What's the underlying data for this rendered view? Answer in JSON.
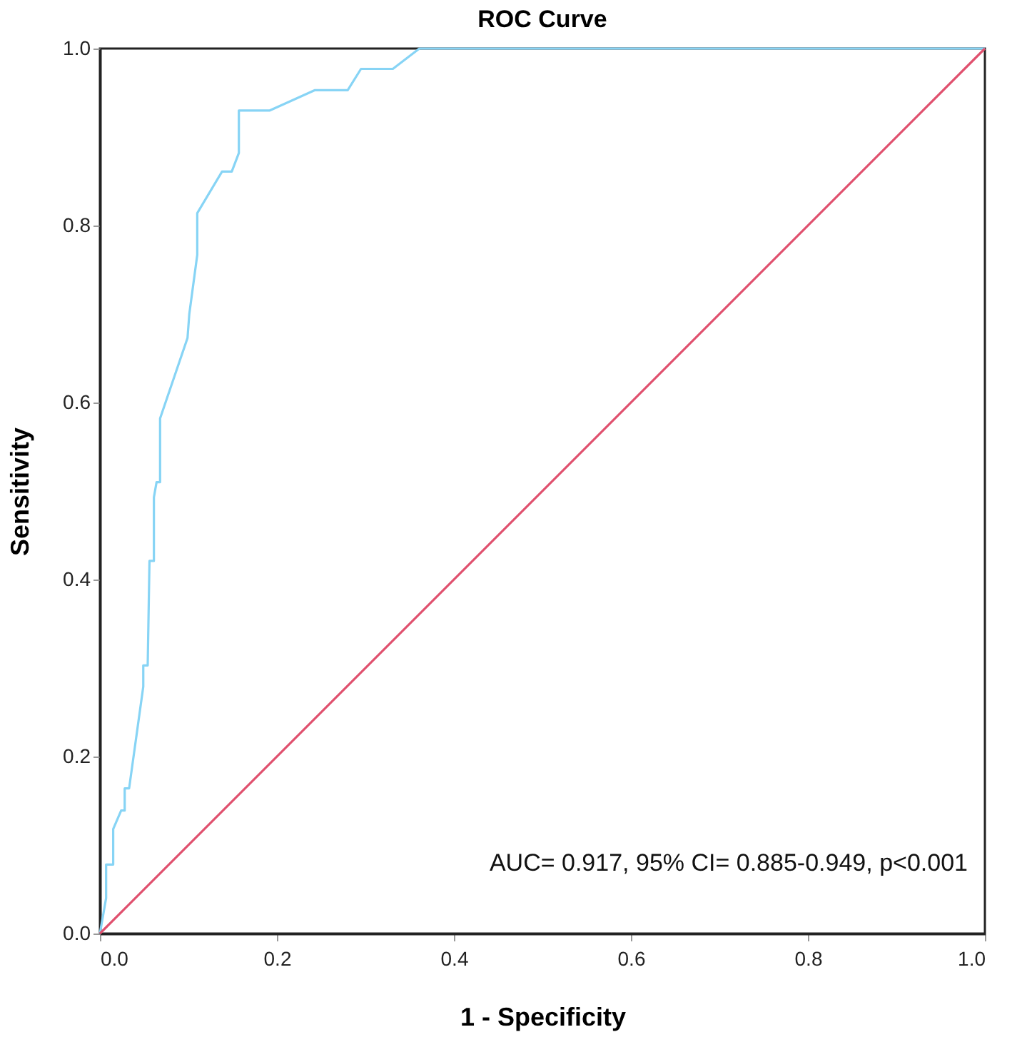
{
  "chart_data": {
    "type": "line",
    "title": "ROC Curve",
    "xlabel": "1 - Specificity",
    "ylabel": "Sensitivity",
    "annotations": [
      "AUC= 0.917, 95% CI= 0.885-0.949, p<0.001"
    ],
    "xlim": [
      0,
      1
    ],
    "ylim": [
      0,
      1
    ],
    "xticks": [
      {
        "value": 0,
        "label": "0.0"
      },
      0.2,
      0.4,
      0.6,
      0.8,
      {
        "value": 1,
        "label": "1.0"
      }
    ],
    "yticks": [
      {
        "value": 0,
        "label": "0.0"
      },
      0.2,
      0.4,
      0.6,
      0.8,
      {
        "value": 1,
        "label": "1.0"
      }
    ],
    "grid": false,
    "marker": "none",
    "line_style": "solid",
    "series": [
      {
        "color": "#87d4f5",
        "x": [
          0,
          0.007,
          0.007,
          0.015,
          0.015,
          0.024,
          0.028,
          0.028,
          0.033,
          0.049,
          0.049,
          0.054,
          0.056,
          0.061,
          0.061,
          0.064,
          0.068,
          0.068,
          0.099,
          0.101,
          0.11,
          0.11,
          0.138,
          0.149,
          0.157,
          0.157,
          0.192,
          0.243,
          0.28,
          0.295,
          0.331,
          0.361,
          1
        ],
        "values": [
          0,
          0.04,
          0.078,
          0.078,
          0.118,
          0.139,
          0.139,
          0.164,
          0.164,
          0.279,
          0.303,
          0.303,
          0.421,
          0.421,
          0.493,
          0.51,
          0.51,
          0.582,
          0.673,
          0.7,
          0.767,
          0.814,
          0.861,
          0.861,
          0.882,
          0.93,
          0.93,
          0.953,
          0.953,
          0.977,
          0.977,
          1,
          1
        ]
      },
      {
        "color": "#e0506e",
        "x": [
          0,
          1
        ],
        "values": [
          0,
          1
        ]
      }
    ]
  }
}
